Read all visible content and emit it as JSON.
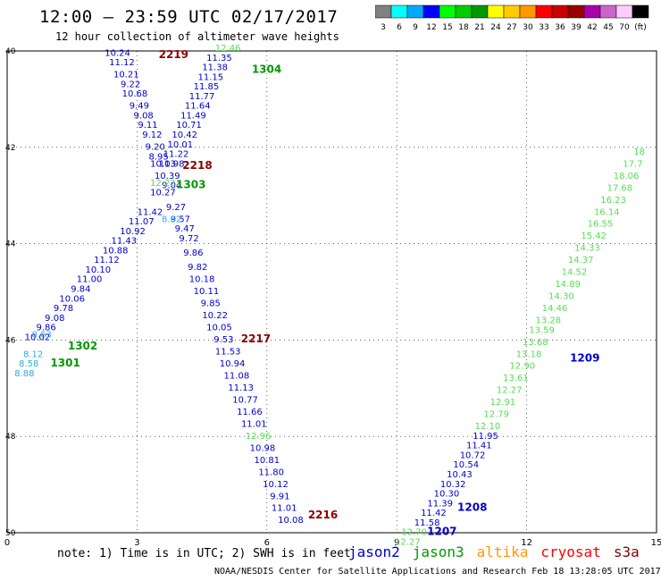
{
  "header": {
    "title": "12:00 – 23:59 UTC 02/17/2017",
    "subtitle": "12 hour collection of altimeter wave heights"
  },
  "color_scale": {
    "swatches": [
      {
        "color": "#808080",
        "label": "3"
      },
      {
        "color": "#00ffff",
        "label": "6"
      },
      {
        "color": "#00aaff",
        "label": "9"
      },
      {
        "color": "#0000ff",
        "label": "12"
      },
      {
        "color": "#00ff00",
        "label": "15"
      },
      {
        "color": "#00cc00",
        "label": "18"
      },
      {
        "color": "#009900",
        "label": "21"
      },
      {
        "color": "#ffff00",
        "label": "24"
      },
      {
        "color": "#ffcc00",
        "label": "27"
      },
      {
        "color": "#ff9900",
        "label": "30"
      },
      {
        "color": "#ff0000",
        "label": "33"
      },
      {
        "color": "#cc0000",
        "label": "36"
      },
      {
        "color": "#990000",
        "label": "39"
      },
      {
        "color": "#aa00aa",
        "label": "42"
      },
      {
        "color": "#cc66cc",
        "label": "45"
      },
      {
        "color": "#ffccff",
        "label": "70"
      },
      {
        "color": "#000000",
        "label": "(ft)"
      }
    ]
  },
  "axes": {
    "x_ticks": [
      "0",
      "3",
      "6",
      "9",
      "12",
      "15"
    ],
    "y_ticks": [
      "40",
      "42",
      "44",
      "46",
      "48",
      "50"
    ],
    "lon_range": [
      0,
      15
    ],
    "lat_range": [
      40,
      50
    ]
  },
  "colors": {
    "blue": "#0000cc",
    "lightblue": "#33aadd",
    "green": "#009900",
    "lightgreen": "#55dd55",
    "darkred": "#880000",
    "red": "#ff0000",
    "orange": "#ff9900",
    "grid": "#000000"
  },
  "tracks": [
    {
      "color": "#0000cc",
      "points": [
        {
          "lon": 2.55,
          "lat": 40.1,
          "v": "10.24"
        },
        {
          "lon": 2.65,
          "lat": 40.3,
          "v": "11.12"
        },
        {
          "lon": 2.75,
          "lat": 40.55,
          "v": "10.21"
        },
        {
          "lon": 2.85,
          "lat": 40.75,
          "v": "9.22"
        },
        {
          "lon": 2.95,
          "lat": 40.95,
          "v": "10.68"
        },
        {
          "lon": 3.05,
          "lat": 41.2,
          "v": "9.49"
        },
        {
          "lon": 3.15,
          "lat": 41.4,
          "v": "9.08"
        },
        {
          "lon": 3.25,
          "lat": 41.6,
          "v": "9.11"
        },
        {
          "lon": 3.35,
          "lat": 41.8,
          "v": "9.12"
        },
        {
          "lon": 3.42,
          "lat": 42.05,
          "v": "9.20"
        },
        {
          "lon": 3.5,
          "lat": 42.25,
          "v": "8.95"
        },
        {
          "lon": 3.6,
          "lat": 42.4,
          "v": "10.13"
        },
        {
          "lon": 3.7,
          "lat": 42.65,
          "v": "10.39"
        },
        {
          "lon": 3.8,
          "lat": 42.85,
          "v": "9.04"
        },
        {
          "lon": 3.9,
          "lat": 43.3,
          "v": "9.27"
        },
        {
          "lon": 4.0,
          "lat": 43.55,
          "v": "9.57"
        },
        {
          "lon": 4.1,
          "lat": 43.75,
          "v": "9.47"
        },
        {
          "lon": 4.2,
          "lat": 43.95,
          "v": "9.72"
        },
        {
          "lon": 4.3,
          "lat": 44.25,
          "v": "9.86"
        },
        {
          "lon": 4.4,
          "lat": 44.55,
          "v": "9.82"
        },
        {
          "lon": 4.5,
          "lat": 44.8,
          "v": "10.18"
        },
        {
          "lon": 4.6,
          "lat": 45.05,
          "v": "10.11"
        },
        {
          "lon": 4.7,
          "lat": 45.3,
          "v": "9.85"
        },
        {
          "lon": 4.8,
          "lat": 45.55,
          "v": "10.22"
        },
        {
          "lon": 4.9,
          "lat": 45.8,
          "v": "10.05"
        },
        {
          "lon": 5.0,
          "lat": 46.05,
          "v": "9.53"
        },
        {
          "lon": 5.1,
          "lat": 46.3,
          "v": "11.53"
        },
        {
          "lon": 5.2,
          "lat": 46.55,
          "v": "10.94"
        },
        {
          "lon": 5.3,
          "lat": 46.8,
          "v": "11.08"
        },
        {
          "lon": 5.4,
          "lat": 47.05,
          "v": "11.13"
        },
        {
          "lon": 5.5,
          "lat": 47.3,
          "v": "10.77"
        },
        {
          "lon": 5.6,
          "lat": 47.55,
          "v": "11.66"
        },
        {
          "lon": 5.7,
          "lat": 47.8,
          "v": "11.01"
        },
        {
          "lon": 5.9,
          "lat": 48.3,
          "v": "10.98"
        },
        {
          "lon": 6.0,
          "lat": 48.55,
          "v": "10.81"
        },
        {
          "lon": 6.1,
          "lat": 48.8,
          "v": "11.80"
        },
        {
          "lon": 6.2,
          "lat": 49.05,
          "v": "10.12"
        },
        {
          "lon": 6.3,
          "lat": 49.3,
          "v": "9.91"
        },
        {
          "lon": 6.4,
          "lat": 49.55,
          "v": "11.01"
        },
        {
          "lon": 6.55,
          "lat": 49.8,
          "v": "10.08"
        }
      ]
    },
    {
      "color": "#0000cc",
      "points": [
        {
          "lon": 4.9,
          "lat": 40.2,
          "v": "11.35"
        },
        {
          "lon": 4.8,
          "lat": 40.4,
          "v": "11.38"
        },
        {
          "lon": 4.7,
          "lat": 40.6,
          "v": "11.15"
        },
        {
          "lon": 4.6,
          "lat": 40.8,
          "v": "11.85"
        },
        {
          "lon": 4.5,
          "lat": 41.0,
          "v": "11.77"
        },
        {
          "lon": 4.4,
          "lat": 41.2,
          "v": "11.64"
        },
        {
          "lon": 4.3,
          "lat": 41.4,
          "v": "11.49"
        },
        {
          "lon": 4.2,
          "lat": 41.6,
          "v": "10.71"
        },
        {
          "lon": 4.1,
          "lat": 41.8,
          "v": "10.42"
        },
        {
          "lon": 4.0,
          "lat": 42.0,
          "v": "10.01"
        },
        {
          "lon": 3.9,
          "lat": 42.2,
          "v": "11.22"
        },
        {
          "lon": 3.8,
          "lat": 42.4,
          "v": "10.98"
        },
        {
          "lon": 3.6,
          "lat": 43.0,
          "v": "10.27"
        },
        {
          "lon": 3.3,
          "lat": 43.4,
          "v": "11.42"
        },
        {
          "lon": 3.1,
          "lat": 43.6,
          "v": "11.07"
        },
        {
          "lon": 2.9,
          "lat": 43.8,
          "v": "10.92"
        },
        {
          "lon": 2.7,
          "lat": 44.0,
          "v": "11.43"
        },
        {
          "lon": 2.5,
          "lat": 44.2,
          "v": "10.88"
        },
        {
          "lon": 2.3,
          "lat": 44.4,
          "v": "11.12"
        },
        {
          "lon": 2.1,
          "lat": 44.6,
          "v": "10.10"
        },
        {
          "lon": 1.9,
          "lat": 44.8,
          "v": "11.00"
        },
        {
          "lon": 1.7,
          "lat": 45.0,
          "v": "9.84"
        },
        {
          "lon": 1.5,
          "lat": 45.2,
          "v": "10.06"
        },
        {
          "lon": 1.3,
          "lat": 45.4,
          "v": "9.78"
        },
        {
          "lon": 1.1,
          "lat": 45.6,
          "v": "9.08"
        },
        {
          "lon": 0.9,
          "lat": 45.8,
          "v": "9.86"
        },
        {
          "lon": 0.7,
          "lat": 46.0,
          "v": "10.02"
        }
      ]
    },
    {
      "color": "#33aadd",
      "points": [
        {
          "lon": 0.8,
          "lat": 45.95,
          "v": "8.63"
        },
        {
          "lon": 0.6,
          "lat": 46.35,
          "v": "8.12"
        },
        {
          "lon": 0.5,
          "lat": 46.55,
          "v": "8.58"
        },
        {
          "lon": 0.4,
          "lat": 46.75,
          "v": "8.88"
        },
        {
          "lon": 3.8,
          "lat": 43.55,
          "v": "8.62"
        }
      ]
    },
    {
      "color": "#55dd55",
      "points": [
        {
          "lon": 5.1,
          "lat": 40.0,
          "v": "12.46"
        },
        {
          "lon": 3.6,
          "lat": 42.8,
          "v": "12.22"
        },
        {
          "lon": 5.8,
          "lat": 48.05,
          "v": "12.96"
        }
      ]
    },
    {
      "color": "#0000cc",
      "points": [
        {
          "lon": 11.05,
          "lat": 48.05,
          "v": "11.95"
        },
        {
          "lon": 10.9,
          "lat": 48.25,
          "v": "11.41"
        },
        {
          "lon": 10.75,
          "lat": 48.45,
          "v": "10.72"
        },
        {
          "lon": 10.6,
          "lat": 48.65,
          "v": "10.54"
        },
        {
          "lon": 10.45,
          "lat": 48.85,
          "v": "10.43"
        },
        {
          "lon": 10.3,
          "lat": 49.05,
          "v": "10.32"
        },
        {
          "lon": 10.15,
          "lat": 49.25,
          "v": "10.30"
        },
        {
          "lon": 10.0,
          "lat": 49.45,
          "v": "11.39"
        },
        {
          "lon": 9.85,
          "lat": 49.65,
          "v": "11.42"
        },
        {
          "lon": 9.7,
          "lat": 49.85,
          "v": "11.58"
        }
      ]
    },
    {
      "color": "#55dd55",
      "points": [
        {
          "lon": 9.4,
          "lat": 50.05,
          "v": "12.70"
        },
        {
          "lon": 9.25,
          "lat": 50.25,
          "v": "12.27"
        },
        {
          "lon": 11.1,
          "lat": 47.85,
          "v": "12.10"
        },
        {
          "lon": 11.3,
          "lat": 47.6,
          "v": "12.79"
        },
        {
          "lon": 11.45,
          "lat": 47.35,
          "v": "12.91"
        },
        {
          "lon": 11.6,
          "lat": 47.1,
          "v": "12.27"
        },
        {
          "lon": 11.75,
          "lat": 46.85,
          "v": "13.61"
        },
        {
          "lon": 11.9,
          "lat": 46.6,
          "v": "12.90"
        },
        {
          "lon": 12.05,
          "lat": 46.35,
          "v": "13.18"
        },
        {
          "lon": 12.2,
          "lat": 46.1,
          "v": "13.68"
        },
        {
          "lon": 12.35,
          "lat": 45.85,
          "v": "13.59"
        },
        {
          "lon": 12.5,
          "lat": 45.65,
          "v": "13.28"
        },
        {
          "lon": 12.65,
          "lat": 45.4,
          "v": "14.46"
        },
        {
          "lon": 12.8,
          "lat": 45.15,
          "v": "14.30"
        },
        {
          "lon": 12.95,
          "lat": 44.9,
          "v": "14.89"
        },
        {
          "lon": 13.1,
          "lat": 44.65,
          "v": "14.52"
        },
        {
          "lon": 13.25,
          "lat": 44.4,
          "v": "14.37"
        },
        {
          "lon": 13.4,
          "lat": 44.15,
          "v": "14.33"
        },
        {
          "lon": 13.55,
          "lat": 43.9,
          "v": "15.42"
        },
        {
          "lon": 13.7,
          "lat": 43.65,
          "v": "16.55"
        },
        {
          "lon": 13.85,
          "lat": 43.4,
          "v": "16.14"
        },
        {
          "lon": 14.0,
          "lat": 43.15,
          "v": "16.23"
        },
        {
          "lon": 14.15,
          "lat": 42.9,
          "v": "17.68"
        },
        {
          "lon": 14.3,
          "lat": 42.65,
          "v": "18.06"
        },
        {
          "lon": 14.45,
          "lat": 42.4,
          "v": "17.7"
        },
        {
          "lon": 14.6,
          "lat": 42.15,
          "v": "18"
        }
      ]
    }
  ],
  "track_labels": [
    {
      "lon": 3.5,
      "lat": 40.15,
      "text": "2219",
      "color": "#880000"
    },
    {
      "lon": 5.65,
      "lat": 40.45,
      "text": "1304",
      "color": "#009900"
    },
    {
      "lon": 4.05,
      "lat": 42.45,
      "text": "2218",
      "color": "#880000"
    },
    {
      "lon": 3.9,
      "lat": 42.85,
      "text": "1303",
      "color": "#009900"
    },
    {
      "lon": 1.4,
      "lat": 46.2,
      "text": "1302",
      "color": "#009900"
    },
    {
      "lon": 1.0,
      "lat": 46.55,
      "text": "1301",
      "color": "#009900"
    },
    {
      "lon": 5.4,
      "lat": 46.05,
      "text": "2217",
      "color": "#880000"
    },
    {
      "lon": 6.95,
      "lat": 49.7,
      "text": "2216",
      "color": "#880000"
    },
    {
      "lon": 13.0,
      "lat": 46.45,
      "text": "1209",
      "color": "#0000cc"
    },
    {
      "lon": 10.4,
      "lat": 49.55,
      "text": "1208",
      "color": "#0000cc"
    },
    {
      "lon": 9.7,
      "lat": 50.05,
      "text": "1207",
      "color": "#0000cc"
    }
  ],
  "legend": {
    "note": "note: 1) Time is in UTC; 2) SWH is in feet",
    "satellites": [
      {
        "name": "jason2",
        "color": "#0000cc"
      },
      {
        "name": "jason3",
        "color": "#009900"
      },
      {
        "name": "altika",
        "color": "#ff9900"
      },
      {
        "name": "cryosat",
        "color": "#ff0000"
      },
      {
        "name": "s3a",
        "color": "#880000"
      }
    ]
  },
  "footer": "NOAA/NESDIS Center for Satellite Applications and Research   Feb 18 13:28:05 UTC 2017"
}
